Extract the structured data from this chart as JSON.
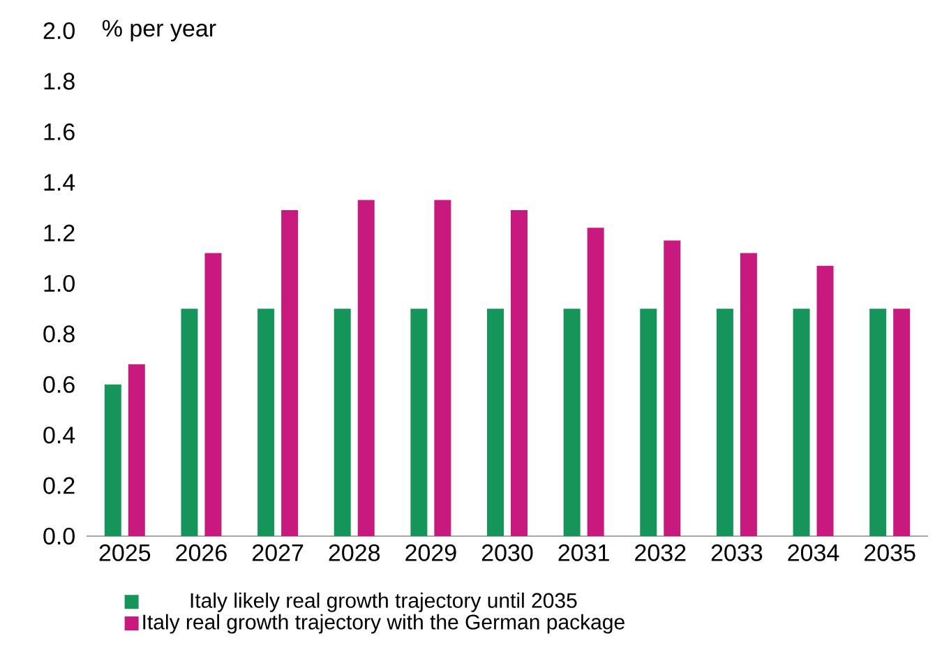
{
  "chart_data": {
    "type": "bar",
    "ylabel": "% per year",
    "categories": [
      "2025",
      "2026",
      "2027",
      "2028",
      "2029",
      "2030",
      "2031",
      "2032",
      "2033",
      "2034",
      "2035"
    ],
    "series": [
      {
        "name": "Italy likely real growth trajectory until 2035",
        "color": "#16955a",
        "values": [
          0.6,
          0.9,
          0.9,
          0.9,
          0.9,
          0.9,
          0.9,
          0.9,
          0.9,
          0.9,
          0.9
        ]
      },
      {
        "name": "Italy real growth trajectory with the German package",
        "color": "#c81a7e",
        "values": [
          0.68,
          1.12,
          1.29,
          1.33,
          1.33,
          1.29,
          1.22,
          1.17,
          1.12,
          1.07,
          0.9
        ]
      }
    ],
    "ylim": [
      0,
      2.0
    ],
    "yticks": [
      {
        "value": 0,
        "label": "0.0"
      },
      {
        "value": 0.2,
        "label": "0.2"
      },
      {
        "value": 0.4,
        "label": "0.4"
      },
      {
        "value": 0.6,
        "label": "0.6"
      },
      {
        "value": 0.8,
        "label": "0.8"
      },
      {
        "value": 1.0,
        "label": "1.0"
      },
      {
        "value": 1.2,
        "label": "1.2"
      },
      {
        "value": 1.4,
        "label": "1.4"
      },
      {
        "value": 1.6,
        "label": "1.6"
      },
      {
        "value": 1.8,
        "label": "1.8"
      },
      {
        "value": 2.0,
        "label": "2.0"
      }
    ],
    "legend": "bottom"
  }
}
